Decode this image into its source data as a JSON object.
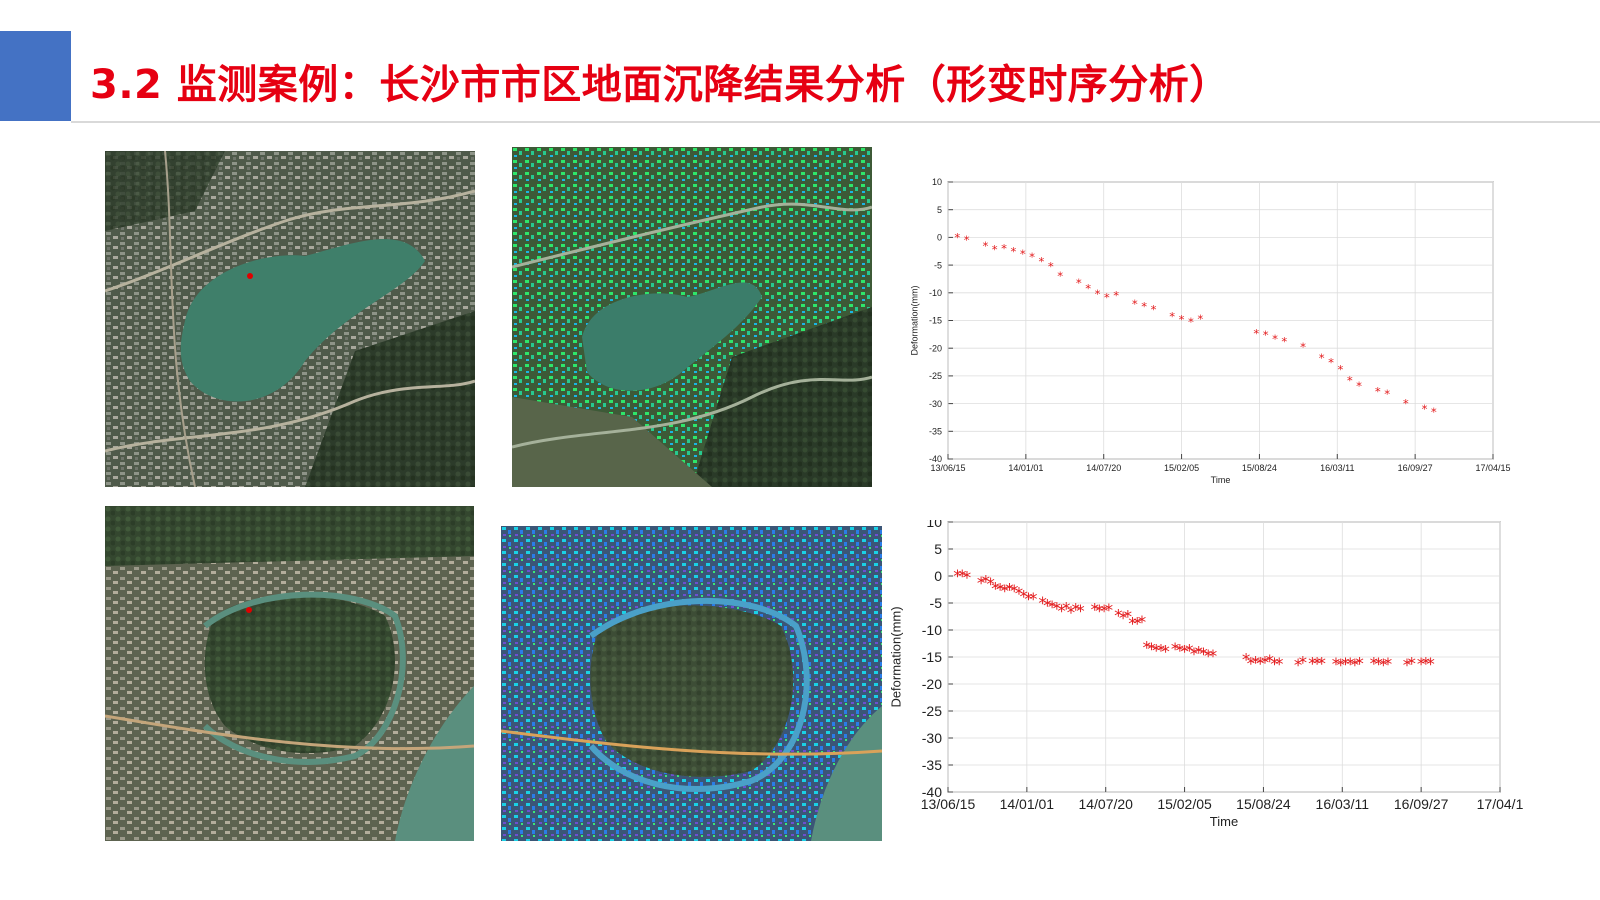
{
  "slide": {
    "title": "3.2 监测案例：长沙市市区地面沉降结果分析（形变时序分析）",
    "accent_color": "#4472c4",
    "title_color": "#e60012"
  },
  "maps": [
    {
      "name": "satellite-map-meixi-lake"
    },
    {
      "name": "deformation-map-meixi-lake"
    },
    {
      "name": "satellite-map-south"
    },
    {
      "name": "deformation-map-south"
    }
  ],
  "chart_data": [
    {
      "type": "scatter",
      "xlabel": "Time",
      "ylabel": "Deformation(mm)",
      "ylim": [
        -40,
        10
      ],
      "yticks": [
        10,
        5,
        0,
        -5,
        -10,
        -15,
        -20,
        -25,
        -30,
        -35,
        -40
      ],
      "xticks": [
        "13/06/15",
        "14/01/01",
        "14/07/20",
        "15/02/05",
        "15/08/24",
        "16/03/11",
        "16/09/27",
        "17/04/15"
      ],
      "xlim": [
        "2013-06-15",
        "2017-04-15"
      ],
      "marker": "*",
      "marker_color": "#e31a1c",
      "x": [
        "2013-07-09",
        "2013-08-02",
        "2013-09-19",
        "2013-10-13",
        "2013-11-06",
        "2013-11-30",
        "2013-12-24",
        "2014-01-17",
        "2014-02-10",
        "2014-03-06",
        "2014-03-30",
        "2014-05-17",
        "2014-06-10",
        "2014-07-04",
        "2014-07-28",
        "2014-08-21",
        "2014-10-08",
        "2014-11-01",
        "2014-11-25",
        "2015-01-12",
        "2015-02-05",
        "2015-03-01",
        "2015-03-25",
        "2015-08-16",
        "2015-09-09",
        "2015-10-03",
        "2015-10-27",
        "2015-12-14",
        "2016-01-31",
        "2016-02-24",
        "2016-03-19",
        "2016-04-12",
        "2016-05-06",
        "2016-06-23",
        "2016-07-17",
        "2016-09-03",
        "2016-10-21",
        "2016-11-14"
      ],
      "y": [
        0,
        -0.5,
        -1.5,
        -2.2,
        -2,
        -2.5,
        -3,
        -3.5,
        -4.3,
        -5.2,
        -7,
        -8.2,
        -9.2,
        -10.2,
        -10.8,
        -10.5,
        -12,
        -12.5,
        -13,
        -14.3,
        -14.8,
        -15.3,
        -14.7,
        -17.3,
        -17.6,
        -18.3,
        -18.8,
        -19.8,
        -21.8,
        -22.6,
        -23.8,
        -25.8,
        -26.8,
        -27.8,
        -28.3,
        -30,
        -31,
        -31.5
      ]
    },
    {
      "type": "scatter",
      "xlabel": "Time",
      "ylabel": "Deformation(mm)",
      "ylim": [
        -40,
        10
      ],
      "yticks": [
        10,
        5,
        0,
        -5,
        -10,
        -15,
        -20,
        -25,
        -30,
        -35,
        -40
      ],
      "xticks": [
        "13/06/15",
        "14/01/01",
        "14/07/20",
        "15/02/05",
        "15/08/24",
        "16/03/11",
        "16/09/27",
        "17/04/1"
      ],
      "xlim": [
        "2013-06-15",
        "2017-04-15"
      ],
      "marker": "*",
      "marker_color": "#e31a1c",
      "x": [
        "2013-07-09",
        "2013-07-21",
        "2013-08-02",
        "2013-09-07",
        "2013-09-19",
        "2013-10-01",
        "2013-10-13",
        "2013-10-25",
        "2013-11-06",
        "2013-11-18",
        "2013-11-30",
        "2013-12-12",
        "2013-12-24",
        "2014-01-05",
        "2014-01-17",
        "2014-02-10",
        "2014-02-22",
        "2014-03-06",
        "2014-03-18",
        "2014-03-30",
        "2014-04-11",
        "2014-04-23",
        "2014-05-05",
        "2014-05-17",
        "2014-06-22",
        "2014-07-04",
        "2014-07-16",
        "2014-07-28",
        "2014-08-21",
        "2014-09-02",
        "2014-09-14",
        "2014-09-26",
        "2014-10-08",
        "2014-10-20",
        "2014-11-01",
        "2014-11-13",
        "2014-11-25",
        "2014-12-07",
        "2014-12-19",
        "2015-01-12",
        "2015-01-24",
        "2015-02-05",
        "2015-02-17",
        "2015-03-01",
        "2015-03-13",
        "2015-03-25",
        "2015-04-06",
        "2015-04-18",
        "2015-07-11",
        "2015-07-23",
        "2015-08-04",
        "2015-08-16",
        "2015-08-28",
        "2015-09-09",
        "2015-09-21",
        "2015-10-03",
        "2015-11-20",
        "2015-12-02",
        "2015-12-26",
        "2016-01-07",
        "2016-01-19",
        "2016-02-24",
        "2016-03-07",
        "2016-03-19",
        "2016-03-31",
        "2016-04-12",
        "2016-04-24",
        "2016-05-30",
        "2016-06-11",
        "2016-06-23",
        "2016-07-05",
        "2016-08-22",
        "2016-09-03",
        "2016-09-27",
        "2016-10-09",
        "2016-10-21"
      ],
      "y": [
        0,
        0,
        -0.3,
        -1.3,
        -1,
        -1.5,
        -2.3,
        -2.5,
        -2.8,
        -2.5,
        -2.8,
        -3.3,
        -3.8,
        -4.3,
        -4.3,
        -5,
        -5.5,
        -5.8,
        -6,
        -6.5,
        -6,
        -6.8,
        -6.2,
        -6.5,
        -6.2,
        -6.5,
        -6.5,
        -6.3,
        -7.3,
        -7.8,
        -7.5,
        -8.8,
        -8.8,
        -8.5,
        -13.3,
        -13.5,
        -13.8,
        -13.8,
        -14,
        -13.5,
        -13.8,
        -14,
        -13.8,
        -14.5,
        -14.2,
        -14.5,
        -14.8,
        -14.8,
        -15.5,
        -16.2,
        -16,
        -16.2,
        -16,
        -15.8,
        -16.3,
        -16.3,
        -16.5,
        -16,
        -16.2,
        -16.2,
        -16.2,
        -16.3,
        -16.5,
        -16.3,
        -16.3,
        -16.5,
        -16.2,
        -16.2,
        -16.3,
        -16.5,
        -16.3,
        -16.5,
        -16.2,
        -16.3,
        -16.2,
        -16.3
      ]
    }
  ]
}
